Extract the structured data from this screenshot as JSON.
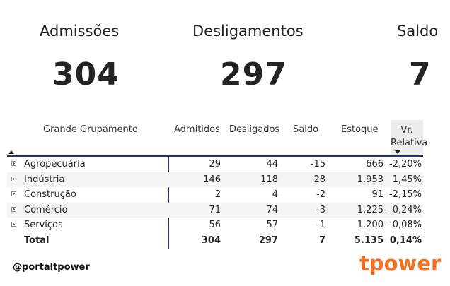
{
  "kpis": [
    {
      "label": "Admissões",
      "value": "304"
    },
    {
      "label": "Desligamentos",
      "value": "297"
    },
    {
      "label": "Saldo",
      "value": "7"
    }
  ],
  "table": {
    "headers": {
      "grupo": "Grande Grupamento",
      "admitidos": "Admitidos",
      "desligados": "Desligados",
      "saldo": "Saldo",
      "estoque": "Estoque",
      "vr_line1": "Vr.",
      "vr_line2": "Relativa"
    },
    "rows": [
      {
        "grupo": "Agropecuária",
        "admitidos": "29",
        "desligados": "44",
        "saldo": "-15",
        "estoque": "666",
        "vr": "-2,20%"
      },
      {
        "grupo": "Indústria",
        "admitidos": "146",
        "desligados": "118",
        "saldo": "28",
        "estoque": "1.953",
        "vr": "1,45%"
      },
      {
        "grupo": "Construção",
        "admitidos": "2",
        "desligados": "4",
        "saldo": "-2",
        "estoque": "91",
        "vr": "-2,15%"
      },
      {
        "grupo": "Comércio",
        "admitidos": "71",
        "desligados": "74",
        "saldo": "-3",
        "estoque": "1.225",
        "vr": "-0,24%"
      },
      {
        "grupo": "Serviços",
        "admitidos": "56",
        "desligados": "57",
        "saldo": "-1",
        "estoque": "1.200",
        "vr": "-0,08%"
      }
    ],
    "total": {
      "grupo": "Total",
      "admitidos": "304",
      "desligados": "297",
      "saldo": "7",
      "estoque": "5.135",
      "vr": "0,14%"
    }
  },
  "footer": {
    "handle": "@portaltpower",
    "logo": "tpower"
  },
  "colors": {
    "accent": "#f36f21",
    "header_line": "#2b2f6b",
    "highlight_header": "#ececec"
  }
}
